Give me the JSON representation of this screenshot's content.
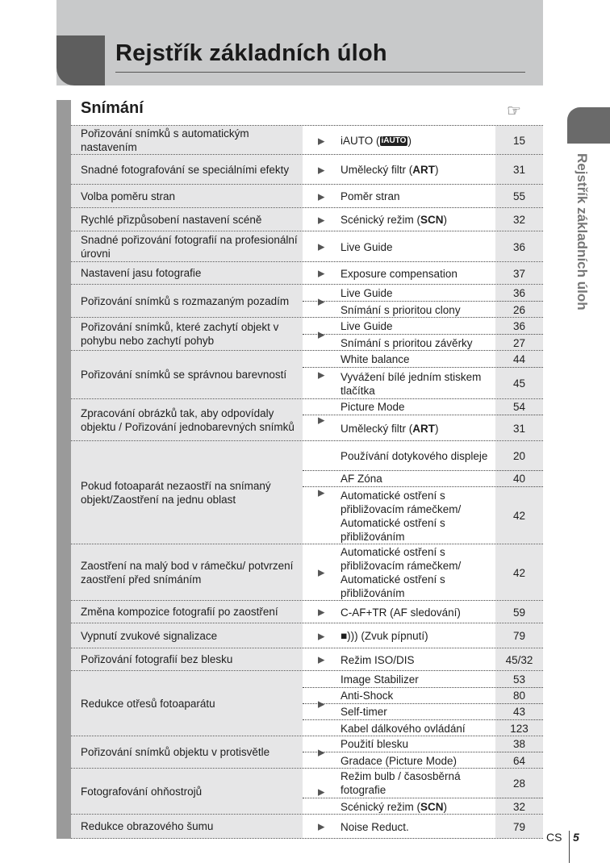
{
  "header": {
    "title": "Rejstřík základních úloh"
  },
  "section": {
    "title": "Snímání",
    "ref_icon": "pointing-hand-icon",
    "ref_glyph": "☞"
  },
  "side_tab": {
    "text": "Rejstřík základních úloh"
  },
  "footer": {
    "lang": "CS",
    "page": "5"
  },
  "rows": [
    {
      "task": "Pořizování snímků s automatickým nastavením",
      "refs": [
        {
          "text": "iAUTO (",
          "icon": "iAUTO",
          "after": ")",
          "page": "15"
        }
      ]
    },
    {
      "task": "Snadné fotografování se speciálními efekty",
      "refs": [
        {
          "text": "Umělecký filtr (",
          "bold": "ART",
          "after": ")",
          "page": "31"
        }
      ]
    },
    {
      "task": "Volba poměru stran",
      "refs": [
        {
          "text": "Poměr stran",
          "page": "55"
        }
      ]
    },
    {
      "task": "Rychlé přizpůsobení nastavení scéně",
      "refs": [
        {
          "text": "Scénický režim (",
          "bold": "SCN",
          "after": ")",
          "page": "32"
        }
      ]
    },
    {
      "task": "Snadné pořizování fotografií na profesionální úrovni",
      "refs": [
        {
          "text": "Live Guide",
          "page": "36"
        }
      ]
    },
    {
      "task": "Nastavení jasu fotografie",
      "refs": [
        {
          "text": "Exposure compensation",
          "page": "37"
        }
      ]
    },
    {
      "task": "Pořizování snímků s rozmazaným pozadím",
      "refs": [
        {
          "text": "Live Guide",
          "page": "36"
        },
        {
          "text": "Snímání s prioritou clony",
          "page": "26"
        }
      ]
    },
    {
      "task": "Pořizování snímků, které zachytí objekt v pohybu nebo zachytí pohyb",
      "refs": [
        {
          "text": "Live Guide",
          "page": "36"
        },
        {
          "text": "Snímání s prioritou závěrky",
          "page": "27"
        }
      ]
    },
    {
      "task": "Pořizování snímků se správnou barevností",
      "refs": [
        {
          "text": "White balance",
          "page": "44"
        },
        {
          "text": "Vyvážení bílé jedním stiskem tlačítka",
          "page": "45"
        }
      ]
    },
    {
      "task": "Zpracování obrázků tak, aby odpovídaly objektu / Pořizování jednobarevných snímků",
      "refs": [
        {
          "text": "Picture Mode",
          "page": "54"
        },
        {
          "text": "Umělecký filtr (",
          "bold": "ART",
          "after": ")",
          "page": "31"
        }
      ]
    },
    {
      "task": "Pokud fotoaparát nezaostří na snímaný objekt/Zaostření na jednu oblast",
      "refs": [
        {
          "text": "Používání dotykového displeje",
          "page": "20"
        },
        {
          "text": "AF Zóna",
          "page": "40"
        },
        {
          "text": "Automatické ostření s přibližovacím rámečkem/ Automatické ostření s přibližováním",
          "page": "42"
        }
      ]
    },
    {
      "task": "Zaostření na malý bod v rámečku/ potvrzení zaostření před snímáním",
      "refs": [
        {
          "text": "Automatické ostření s přibližovacím rámečkem/ Automatické ostření s přibližováním",
          "page": "42"
        }
      ]
    },
    {
      "task": "Změna kompozice fotografií po zaostření",
      "refs": [
        {
          "text": "C-AF+TR (AF sledování)",
          "page": "59"
        }
      ]
    },
    {
      "task": "Vypnutí zvukové signalizace",
      "refs": [
        {
          "text": "■))) (Zvuk pípnutí)",
          "page": "79"
        }
      ]
    },
    {
      "task": "Pořizování fotografií bez blesku",
      "refs": [
        {
          "text": "Režim ISO/DIS",
          "page": "45/32"
        }
      ]
    },
    {
      "task": "Redukce otřesů fotoaparátu",
      "refs": [
        {
          "text": "Image Stabilizer",
          "page": "53"
        },
        {
          "text": "Anti-Shock",
          "page": "80"
        },
        {
          "text": "Self-timer",
          "page": "43"
        },
        {
          "text": "Kabel dálkového ovládání",
          "page": "123"
        }
      ]
    },
    {
      "task": "Pořizování snímků objektu v protisvětle",
      "refs": [
        {
          "text": "Použití blesku",
          "page": "38"
        },
        {
          "text": "Gradace (Picture Mode)",
          "page": "64"
        }
      ]
    },
    {
      "task": "Fotografování ohňostrojů",
      "refs": [
        {
          "text": "Režim bulb / časosběrná fotografie",
          "page": "28"
        },
        {
          "text": "Scénický režim (",
          "bold": "SCN",
          "after": ")",
          "page": "32"
        }
      ]
    },
    {
      "task": "Redukce obrazového šumu",
      "refs": [
        {
          "text": "Noise Reduct.",
          "page": "79"
        }
      ]
    }
  ]
}
